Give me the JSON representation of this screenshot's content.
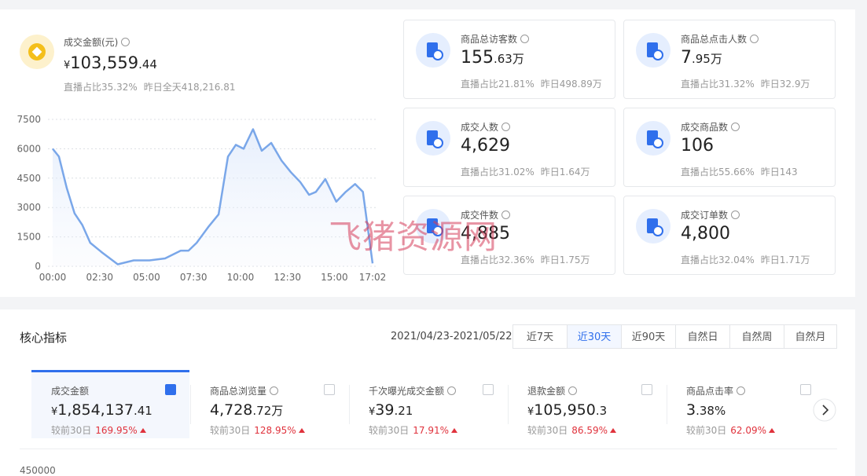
{
  "summary": {
    "label": "成交金额(元)",
    "currency": "¥",
    "value": "103,559",
    "decimal": ".44",
    "live_share": "直播占比35.32%",
    "yesterday": "昨日全天418,216.81"
  },
  "chart_data": {
    "type": "line",
    "x": [
      0,
      20,
      45,
      70,
      95,
      120,
      158,
      208,
      259,
      309,
      359,
      409,
      434,
      460,
      497,
      530,
      560,
      585,
      610,
      640,
      668,
      698,
      731,
      761,
      791,
      819,
      841,
      871,
      906,
      936,
      966,
      991,
      1022
    ],
    "series": [
      {
        "color": "#7aa7e9",
        "values": [
          6000,
          5600,
          4000,
          2700,
          2100,
          1200,
          700,
          100,
          300,
          300,
          400,
          800,
          800,
          1200,
          2000,
          2650,
          5600,
          6200,
          6000,
          7000,
          5900,
          6300,
          5400,
          4800,
          4300,
          3650,
          3800,
          4450,
          3300,
          3800,
          4200,
          3800,
          150
        ]
      }
    ],
    "xlim": [
      0,
      1022
    ],
    "xticks": [
      {
        "value": 0,
        "label": "00:00"
      },
      {
        "value": 150,
        "label": "02:30"
      },
      {
        "value": 300,
        "label": "05:00"
      },
      {
        "value": 450,
        "label": "07:30"
      },
      {
        "value": 600,
        "label": "10:00"
      },
      {
        "value": 750,
        "label": "12:30"
      },
      {
        "value": 900,
        "label": "15:00"
      },
      {
        "value": 1022,
        "label": "17:02"
      }
    ],
    "ylim": [
      0,
      7500
    ],
    "yticks": [
      0,
      1500,
      3000,
      4500,
      6000,
      7500
    ],
    "grid": true
  },
  "cards": [
    {
      "label": "商品总访客数",
      "value": "155",
      "unit": ".63万",
      "live_share": "直播占比21.81%",
      "yesterday": "昨日498.89万"
    },
    {
      "label": "商品总点击人数",
      "value": "7",
      "unit": ".95万",
      "live_share": "直播占比31.32%",
      "yesterday": "昨日32.9万"
    },
    {
      "label": "成交人数",
      "value": "4,629",
      "live_share": "直播占比31.02%",
      "yesterday": "昨日1.64万"
    },
    {
      "label": "成交商品数",
      "value": "106",
      "live_share": "直播占比55.66%",
      "yesterday": "昨日143"
    },
    {
      "label": "成交件数",
      "value": "4,885",
      "live_share": "直播占比32.36%",
      "yesterday": "昨日1.75万"
    },
    {
      "label": "成交订单数",
      "value": "4,800",
      "live_share": "直播占比32.04%",
      "yesterday": "昨日1.71万"
    }
  ],
  "watermark": "飞猪资源网",
  "core": {
    "title": "核心指标",
    "date_range": "2021/04/23-2021/05/22",
    "tabs": [
      {
        "label": "近7天"
      },
      {
        "label": "近30天",
        "selected": true
      },
      {
        "label": "近90天"
      },
      {
        "label": "自然日"
      },
      {
        "label": "自然周"
      },
      {
        "label": "自然月"
      }
    ],
    "metrics": [
      {
        "label": "成交金额",
        "prefix": "¥",
        "value": "1,854,137",
        "decimal": ".41",
        "compare": "较前30日",
        "change": "169.95%",
        "checked": true
      },
      {
        "label": "商品总浏览量",
        "value": "4,728",
        "decimal": ".72万",
        "compare": "较前30日",
        "change": "128.95%"
      },
      {
        "label": "千次曝光成交金额",
        "prefix": "¥",
        "value": "39",
        "decimal": ".21",
        "compare": "较前30日",
        "change": "17.91%"
      },
      {
        "label": "退款金额",
        "prefix": "¥",
        "value": "105,950",
        "decimal": ".3",
        "compare": "较前30日",
        "change": "86.59%"
      },
      {
        "label": "商品点击率",
        "value": "3",
        "decimal": ".38%",
        "compare": "较前30日",
        "change": "62.09%"
      }
    ]
  },
  "bottom_chart": {
    "ytick": "450000"
  }
}
